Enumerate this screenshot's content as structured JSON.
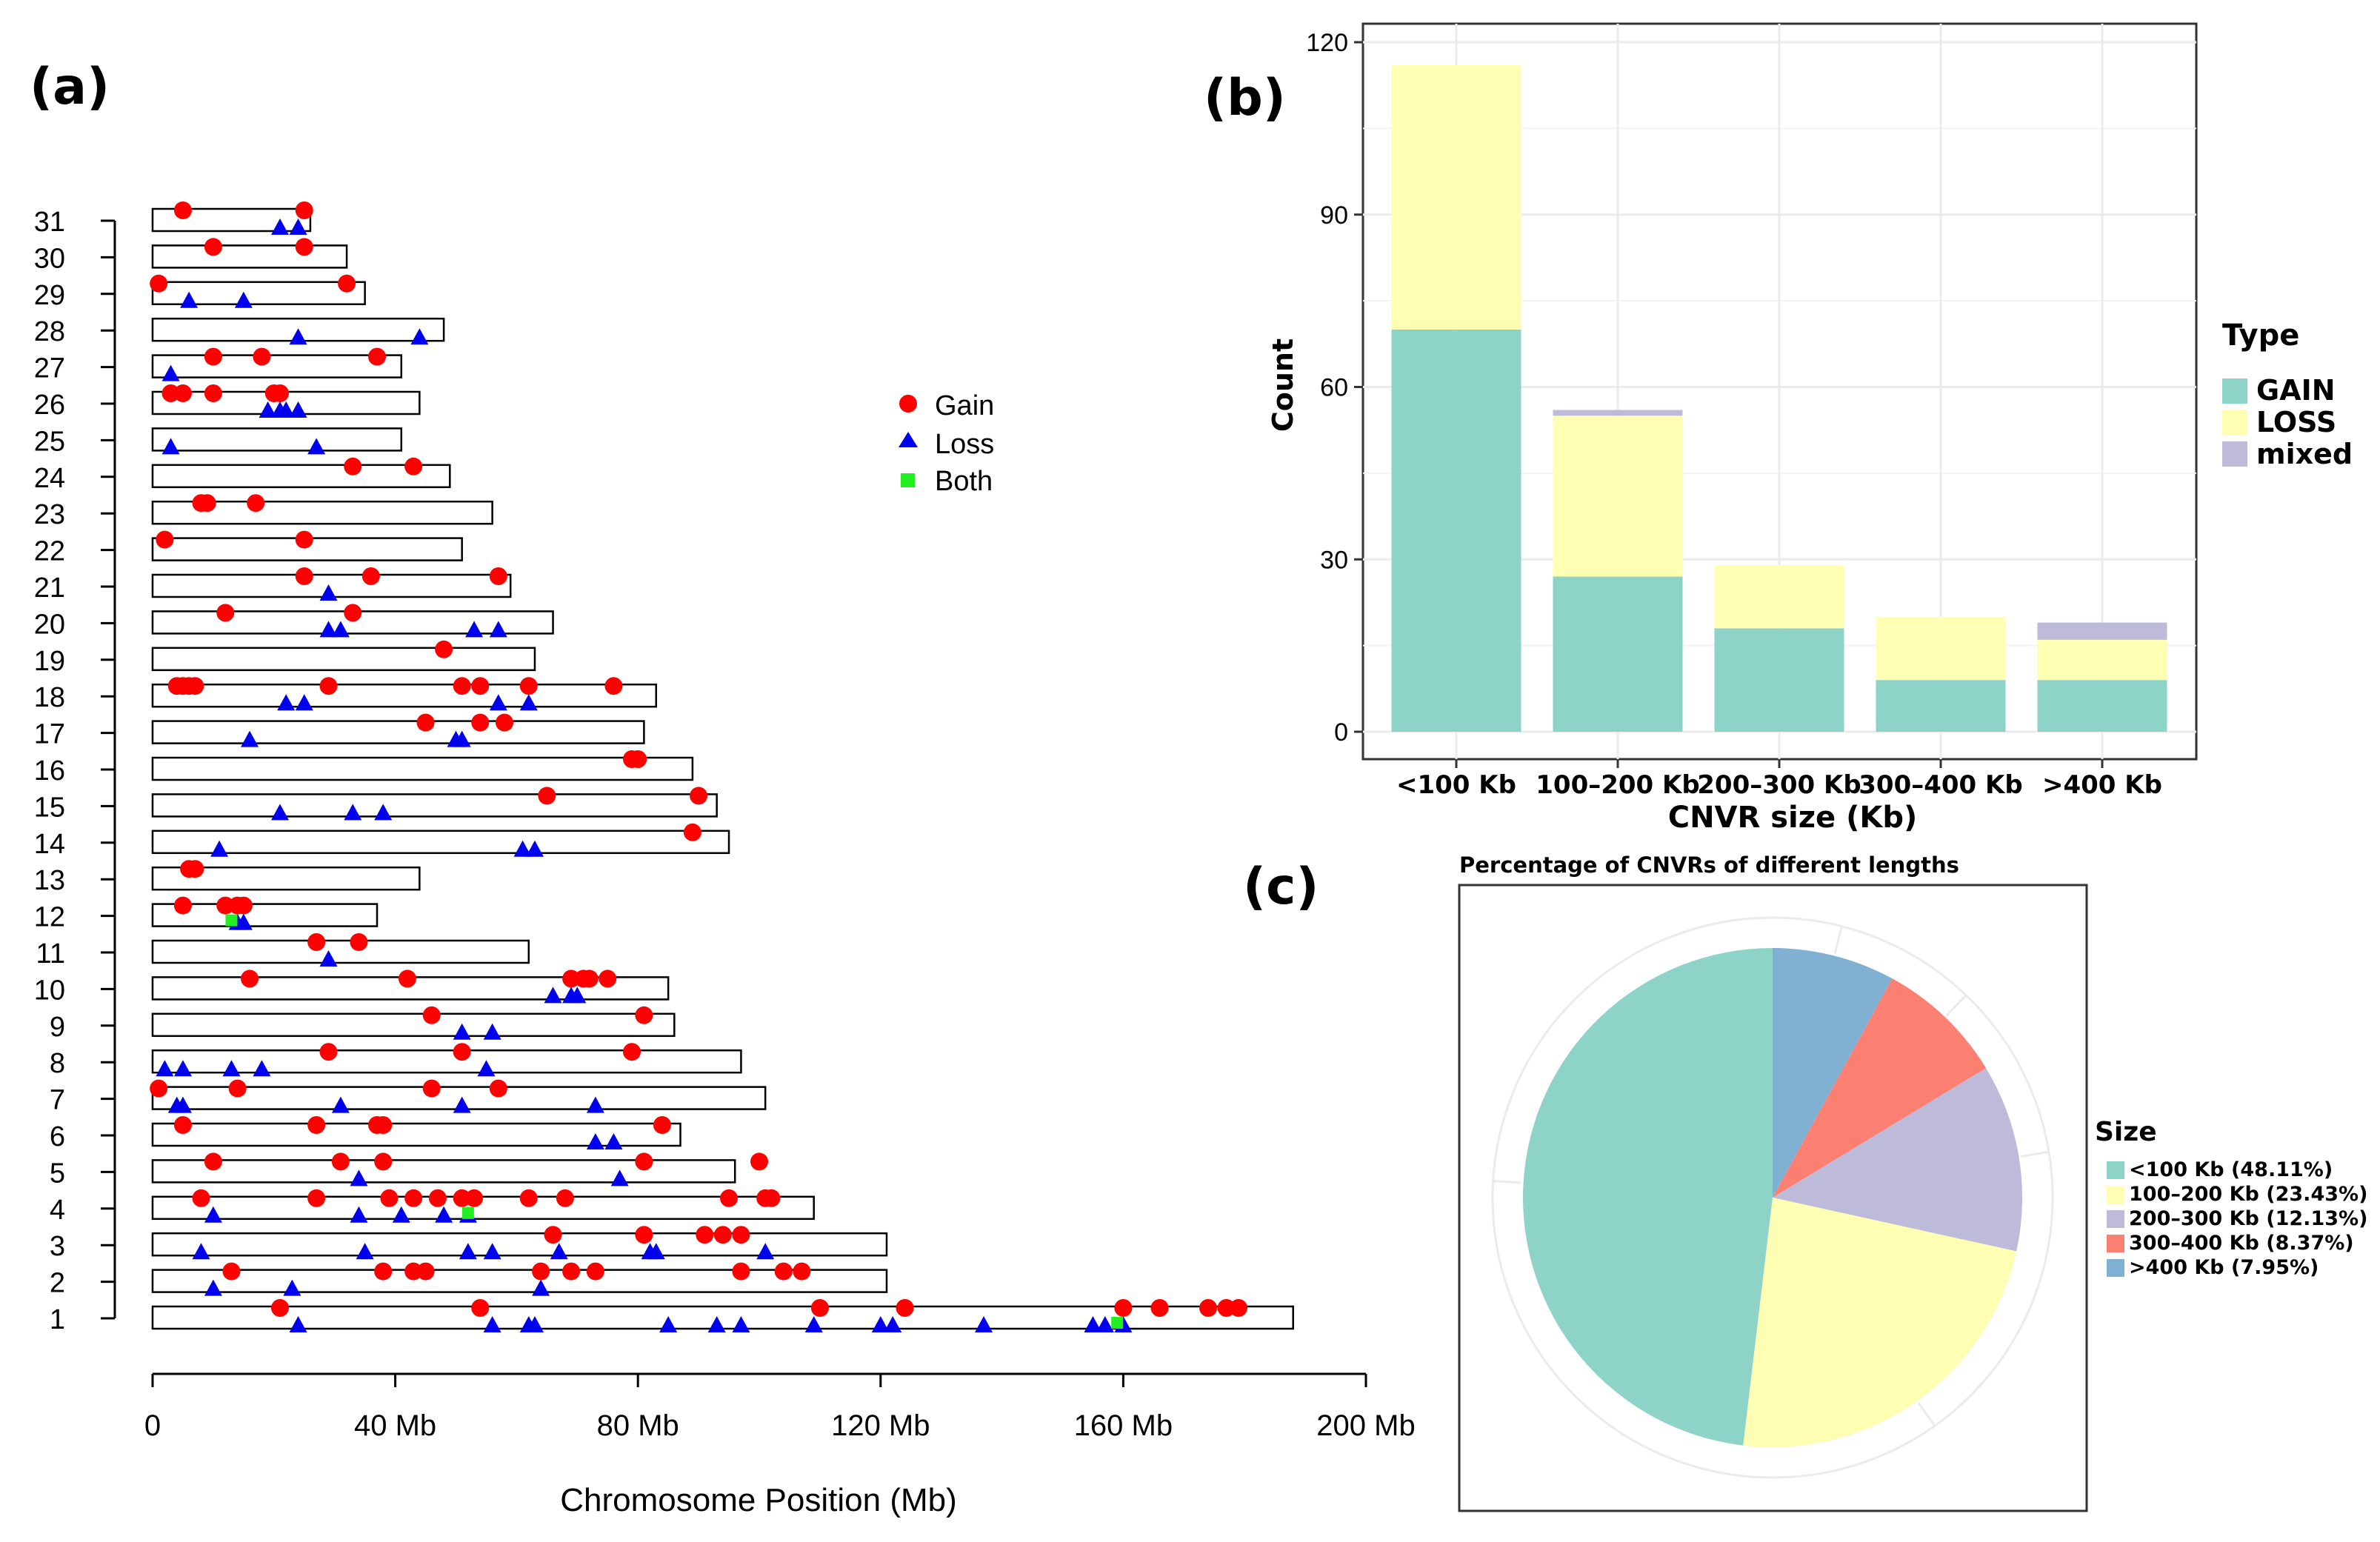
{
  "colors": {
    "gain": "#ff0000",
    "loss": "#0000ee",
    "both": "#22ee22",
    "teal": "#8dd3c7",
    "yellow": "#ffffb3",
    "lavender": "#bebada",
    "salmon": "#fb8072",
    "blue": "#80b1d3",
    "grid": "#ebebeb"
  },
  "chart_data": [
    {
      "panel": "(a)",
      "type": "scatter",
      "title": "",
      "xlabel": "Chromosome Position (Mb)",
      "ylabel": "",
      "xlim": [
        0,
        200
      ],
      "x_ticks": [
        0,
        40,
        80,
        120,
        160,
        200
      ],
      "x_tick_labels": [
        "0",
        "40 Mb",
        "80 Mb",
        "120 Mb",
        "160 Mb",
        "200 Mb"
      ],
      "legend": {
        "position": "right",
        "entries": [
          {
            "label": "Gain",
            "marker": "circle"
          },
          {
            "label": "Loss",
            "marker": "triangle"
          },
          {
            "label": "Both",
            "marker": "square"
          }
        ]
      },
      "chromosomes": [
        {
          "id": "1",
          "length": 188,
          "gain": [
            21,
            54,
            110,
            124,
            160,
            166,
            174,
            177,
            179
          ],
          "loss": [
            24,
            56,
            62,
            63,
            85,
            93,
            97,
            109,
            120,
            122,
            137,
            155,
            157,
            160
          ],
          "both": [
            159
          ]
        },
        {
          "id": "2",
          "length": 121,
          "gain": [
            13,
            38,
            43,
            45,
            64,
            69,
            73,
            97,
            104,
            107
          ],
          "loss": [
            10,
            23,
            64
          ],
          "both": []
        },
        {
          "id": "3",
          "length": 121,
          "gain": [
            66,
            81,
            91,
            94,
            97
          ],
          "loss": [
            8,
            35,
            52,
            56,
            67,
            82,
            83,
            101
          ],
          "both": []
        },
        {
          "id": "4",
          "length": 109,
          "gain": [
            8,
            27,
            39,
            43,
            47,
            51,
            53,
            62,
            68,
            95,
            101,
            102
          ],
          "loss": [
            10,
            34,
            41,
            48,
            52
          ],
          "both": [
            52
          ]
        },
        {
          "id": "5",
          "length": 96,
          "gain": [
            10,
            31,
            38,
            81,
            100
          ],
          "loss": [
            34,
            77
          ],
          "both": []
        },
        {
          "id": "6",
          "length": 87,
          "gain": [
            5,
            27,
            37,
            38,
            84
          ],
          "loss": [
            73,
            76
          ],
          "both": []
        },
        {
          "id": "7",
          "length": 101,
          "gain": [
            1,
            14,
            46,
            57
          ],
          "loss": [
            4,
            5,
            31,
            51,
            73
          ],
          "both": []
        },
        {
          "id": "8",
          "length": 97,
          "gain": [
            29,
            51,
            79
          ],
          "loss": [
            2,
            5,
            13,
            18,
            55
          ],
          "both": []
        },
        {
          "id": "9",
          "length": 86,
          "gain": [
            46,
            81
          ],
          "loss": [
            51,
            56
          ],
          "both": []
        },
        {
          "id": "10",
          "length": 85,
          "gain": [
            16,
            42,
            69,
            71,
            72,
            75
          ],
          "loss": [
            66,
            69,
            70
          ],
          "both": []
        },
        {
          "id": "11",
          "length": 62,
          "gain": [
            27,
            34
          ],
          "loss": [
            29
          ],
          "both": []
        },
        {
          "id": "12",
          "length": 37,
          "gain": [
            5,
            12,
            14,
            15
          ],
          "loss": [
            14,
            15
          ],
          "both": [
            13
          ]
        },
        {
          "id": "13",
          "length": 44,
          "gain": [
            6,
            7
          ],
          "loss": [],
          "both": []
        },
        {
          "id": "14",
          "length": 95,
          "gain": [
            89
          ],
          "loss": [
            11,
            61,
            63
          ],
          "both": []
        },
        {
          "id": "15",
          "length": 93,
          "gain": [
            65,
            90
          ],
          "loss": [
            21,
            33,
            38
          ],
          "both": []
        },
        {
          "id": "16",
          "length": 89,
          "gain": [
            79,
            80
          ],
          "loss": [],
          "both": []
        },
        {
          "id": "17",
          "length": 81,
          "gain": [
            45,
            54,
            58
          ],
          "loss": [
            16,
            50,
            51
          ],
          "both": []
        },
        {
          "id": "18",
          "length": 83,
          "gain": [
            4,
            5,
            6,
            7,
            29,
            51,
            54,
            62,
            76
          ],
          "loss": [
            22,
            25,
            57,
            62
          ],
          "both": []
        },
        {
          "id": "19",
          "length": 63,
          "gain": [
            48
          ],
          "loss": [],
          "both": []
        },
        {
          "id": "20",
          "length": 66,
          "gain": [
            12,
            33
          ],
          "loss": [
            29,
            31,
            53,
            57
          ],
          "both": []
        },
        {
          "id": "21",
          "length": 59,
          "gain": [
            25,
            36,
            57
          ],
          "loss": [
            29
          ],
          "both": []
        },
        {
          "id": "22",
          "length": 51,
          "gain": [
            2,
            25
          ],
          "loss": [],
          "both": []
        },
        {
          "id": "23",
          "length": 56,
          "gain": [
            8,
            9,
            17
          ],
          "loss": [],
          "both": []
        },
        {
          "id": "24",
          "length": 49,
          "gain": [
            33,
            43
          ],
          "loss": [],
          "both": []
        },
        {
          "id": "25",
          "length": 41,
          "gain": [],
          "loss": [
            3,
            27
          ],
          "both": []
        },
        {
          "id": "26",
          "length": 44,
          "gain": [
            3,
            5,
            10,
            20,
            21
          ],
          "loss": [
            19,
            21,
            22,
            24
          ],
          "both": []
        },
        {
          "id": "27",
          "length": 41,
          "gain": [
            10,
            18,
            37
          ],
          "loss": [
            3
          ],
          "both": []
        },
        {
          "id": "28",
          "length": 48,
          "gain": [],
          "loss": [
            24,
            44
          ],
          "both": []
        },
        {
          "id": "29",
          "length": 35,
          "gain": [
            1,
            32
          ],
          "loss": [
            6,
            15
          ],
          "both": []
        },
        {
          "id": "30",
          "length": 32,
          "gain": [
            10,
            25
          ],
          "loss": [],
          "both": []
        },
        {
          "id": "31",
          "length": 26,
          "gain": [
            5,
            25
          ],
          "loss": [
            21,
            24
          ],
          "both": []
        }
      ]
    },
    {
      "panel": "(b)",
      "type": "bar",
      "stacked": true,
      "title": "",
      "xlabel": "CNVR size (Kb)",
      "ylabel": "Count",
      "ylim": [
        0,
        120
      ],
      "y_ticks": [
        0,
        30,
        60,
        90,
        120
      ],
      "categories": [
        "<100 Kb",
        "100–200 Kb",
        "200–300 Kb",
        "300–400 Kb",
        ">400 Kb"
      ],
      "legend_title": "Type",
      "legend_position": "right",
      "series": [
        {
          "name": "GAIN",
          "values": [
            70,
            27,
            18,
            9,
            9
          ]
        },
        {
          "name": "LOSS",
          "values": [
            46,
            28,
            11,
            11,
            7
          ]
        },
        {
          "name": "mixed",
          "values": [
            0,
            1,
            0,
            0,
            3
          ]
        }
      ]
    },
    {
      "panel": "(c)",
      "type": "pie",
      "title": "Percentage of CNVRs of different lengths",
      "legend_title": "Size",
      "legend_position": "right",
      "labels": [
        "<100 Kb (48.11%)",
        "100–200 Kb (23.43%)",
        "200–300 Kb (12.13%)",
        "300–400 Kb (8.37%)",
        ">400 Kb (7.95%)"
      ],
      "values": [
        48.11,
        23.43,
        12.13,
        8.37,
        7.95
      ]
    }
  ]
}
